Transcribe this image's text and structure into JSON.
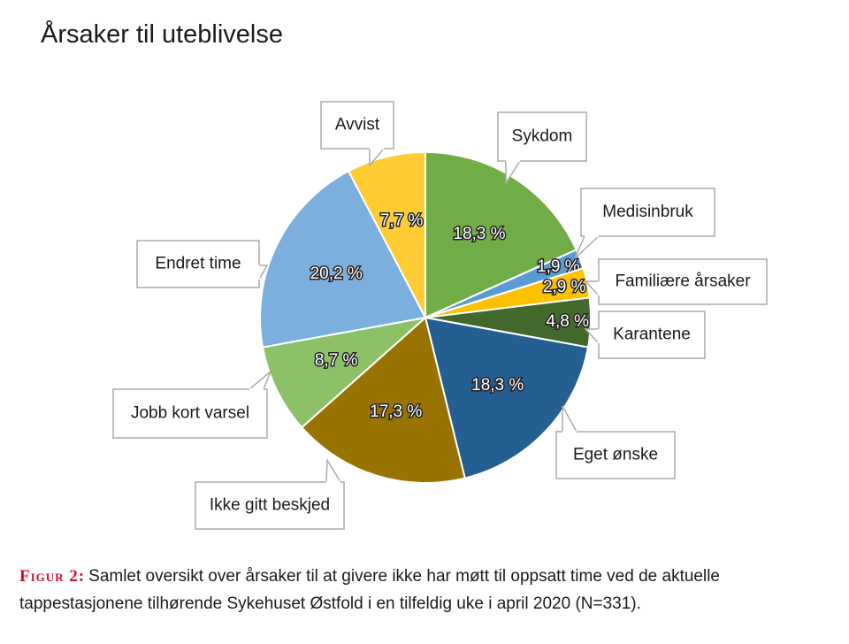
{
  "chart_data": {
    "type": "pie",
    "title": "Årsaker til uteblivelse",
    "categories": [
      "Sykdom",
      "Medisinbruk",
      "Familiære årsaker",
      "Karantene",
      "Eget ønske",
      "Ikke gitt beskjed",
      "Jobb kort varsel",
      "Endret time",
      "Avvist"
    ],
    "values": [
      18.3,
      1.9,
      2.9,
      4.8,
      18.3,
      17.3,
      8.7,
      20.2,
      7.7
    ],
    "value_labels": [
      "18,3 %",
      "1,9 %",
      "2,9 %",
      "4,8 %",
      "18,3 %",
      "17,3 %",
      "8,7 %",
      "20,2 %",
      "7,7 %"
    ],
    "colors": [
      "#70ad47",
      "#5b9bd5",
      "#ffc000",
      "#43682b",
      "#255e91",
      "#997300",
      "#8cc168",
      "#7cafdd",
      "#ffcd33"
    ]
  },
  "caption": {
    "label": "Figur 2:",
    "text": "Samlet oversikt over årsaker til at givere ikke har møtt til oppsatt time ved de aktuelle tappestasjonene tilhørende Sykehuset Østfold i en tilfeldig uke i april 2020 (N=331)."
  }
}
